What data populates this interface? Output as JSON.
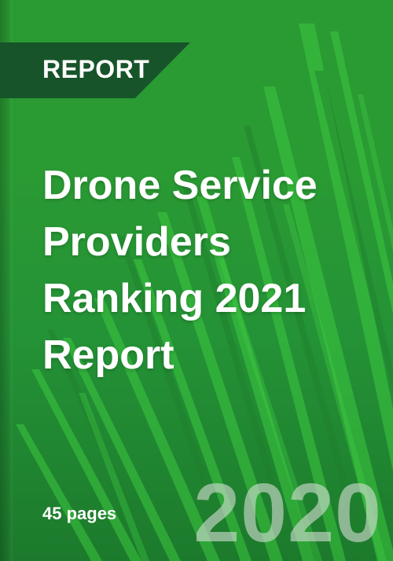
{
  "badge": {
    "label": "REPORT"
  },
  "title": {
    "lines": [
      "Drone Service",
      "Providers",
      "Ranking 2021",
      "Report"
    ]
  },
  "meta": {
    "pages": "45 pages",
    "year": "2020"
  },
  "colors": {
    "background": "#2a9a33",
    "ribbon": "#17542a",
    "stripe_light": "#3cc83f",
    "text": "#ffffff"
  }
}
